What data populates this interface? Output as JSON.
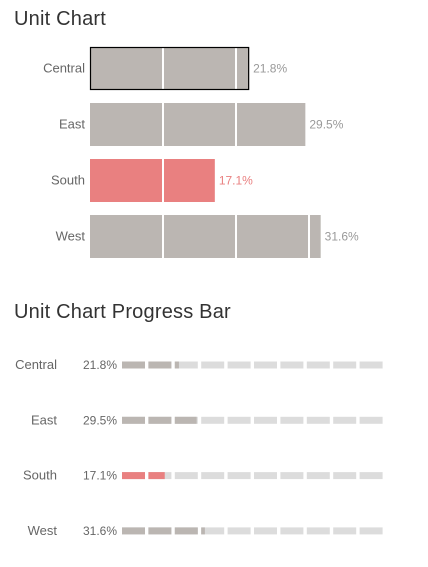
{
  "titles": {
    "unit_chart": "Unit Chart",
    "progress_chart": "Unit Chart Progress Bar"
  },
  "colors": {
    "bar": "#bbb6b2",
    "highlight": "#e98080",
    "track": "#dcdcdc",
    "label": "#666666",
    "value_text": "#999999"
  },
  "chart_data": [
    {
      "type": "bar",
      "title": "Unit Chart",
      "categories": [
        "Central",
        "East",
        "South",
        "West"
      ],
      "values": [
        21.8,
        29.5,
        17.1,
        31.6
      ],
      "value_labels": [
        "21.8%",
        "29.5%",
        "17.1%",
        "31.6%"
      ],
      "unit_size": 10,
      "highlight_category": "South",
      "selected_category": "Central",
      "xlim": [
        0,
        32
      ]
    },
    {
      "type": "bar",
      "title": "Unit Chart Progress Bar",
      "categories": [
        "Central",
        "East",
        "South",
        "West"
      ],
      "values": [
        21.8,
        29.5,
        17.1,
        31.6
      ],
      "value_labels": [
        "21.8%",
        "29.5%",
        "17.1%",
        "31.6%"
      ],
      "segments": 10,
      "max": 100,
      "highlight_category": "South"
    }
  ]
}
